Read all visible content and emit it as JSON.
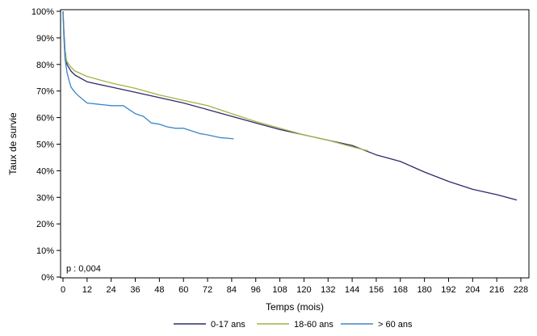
{
  "chart_data": {
    "type": "line",
    "xlabel": "Temps (mois)",
    "ylabel": "Taux de survie",
    "xlim": [
      0,
      228
    ],
    "ylim": [
      0,
      100
    ],
    "x_ticks": [
      0,
      12,
      24,
      36,
      48,
      60,
      72,
      84,
      96,
      108,
      120,
      132,
      144,
      156,
      168,
      180,
      192,
      204,
      216,
      228
    ],
    "y_ticks": [
      0,
      10,
      20,
      30,
      40,
      50,
      60,
      70,
      80,
      90,
      100
    ],
    "y_tick_suffix": "%",
    "grid": false,
    "legend_position": "bottom",
    "annotation": "p : 0,004",
    "series": [
      {
        "name": "0-17 ans",
        "color": "#2b2b6b",
        "x": [
          0,
          0.5,
          1,
          2,
          4,
          6,
          12,
          24,
          36,
          48,
          60,
          72,
          84,
          96,
          108,
          120,
          132,
          144,
          156,
          168,
          180,
          192,
          204,
          216,
          226
        ],
        "y": [
          100,
          92,
          85,
          80,
          77.5,
          76,
          73.5,
          71.5,
          69.5,
          67.5,
          65.5,
          63,
          60.5,
          58,
          55.5,
          53.5,
          51.5,
          49.5,
          46,
          43.5,
          39.5,
          36,
          33,
          31,
          29
        ]
      },
      {
        "name": "18-60 ans",
        "color": "#a4b341",
        "x": [
          0,
          0.5,
          1,
          2,
          4,
          6,
          12,
          24,
          36,
          48,
          60,
          72,
          84,
          96,
          108,
          120,
          132,
          144,
          152
        ],
        "y": [
          100,
          90,
          84,
          81,
          79,
          77.5,
          75.5,
          73,
          71,
          68.5,
          66.5,
          64.5,
          61.5,
          58.5,
          56,
          53.5,
          51.5,
          49,
          47.5
        ]
      },
      {
        "name": "> 60 ans",
        "color": "#3a86c8",
        "x": [
          0,
          0.5,
          1,
          2,
          3,
          4,
          6,
          8,
          12,
          18,
          24,
          30,
          36,
          40,
          44,
          48,
          52,
          56,
          60,
          64,
          68,
          72,
          78,
          85
        ],
        "y": [
          100,
          90,
          82,
          77,
          74,
          71.5,
          69.5,
          68,
          65.5,
          65,
          64.5,
          64.5,
          61.5,
          60.5,
          58,
          57.5,
          56.5,
          56,
          56,
          55,
          54,
          53.5,
          52.5,
          52
        ]
      }
    ]
  }
}
